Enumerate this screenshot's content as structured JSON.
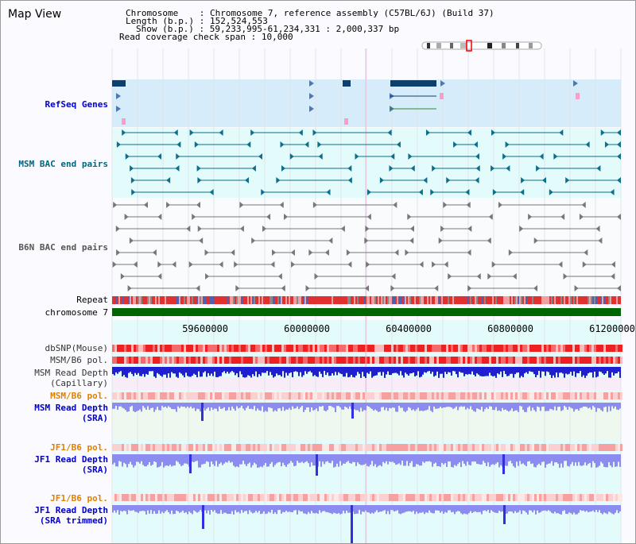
{
  "header": {
    "title": "Map View",
    "info_lines": [
      {
        "label": "Chromosome",
        "value": "Chromosome 7, reference assembly (C57BL/6J) (Build 37)"
      },
      {
        "label": "Length (b.p.)",
        "value": "152,524,553"
      },
      {
        "label": "Show (b.p.)",
        "value": "59,233,995-61,234,331 : 2,000,337 bp"
      },
      {
        "label": "Read coverage check span",
        "value": "10,000"
      }
    ]
  },
  "tracks": {
    "refseq": {
      "label": "RefSeq Genes",
      "color": "#0000cc"
    },
    "msm_bac": {
      "label": "MSM BAC end pairs",
      "color": "#006680"
    },
    "b6n_bac": {
      "label": "B6N BAC end pairs",
      "color": "#555555"
    },
    "repeat": {
      "label": "Repeat",
      "color": "#000000"
    },
    "chromosome": {
      "label": "chromosome 7",
      "color": "#000000"
    },
    "dbsnp": {
      "label": "dbSNP(Mouse)",
      "color": "#333333"
    },
    "msm_b6_pol_1": {
      "label": "MSM/B6 pol.",
      "color": "#333333"
    },
    "msm_read_depth_cap": {
      "label": "MSM Read Depth",
      "label2": "(Capillary)",
      "color": "#333333"
    },
    "msm_b6_pol_2": {
      "label": "MSM/B6 pol.",
      "color": "#e08000"
    },
    "msm_read_depth_sra": {
      "label": "MSM Read Depth",
      "label2": "(SRA)",
      "color": "#0000cc"
    },
    "jf1_b6_pol_1": {
      "label": "JF1/B6 pol.",
      "color": "#e08000"
    },
    "jf1_read_depth_sra": {
      "label": "JF1 Read Depth",
      "label2": "(SRA)",
      "color": "#0000cc"
    },
    "jf1_b6_pol_2": {
      "label": "JF1/B6 pol.",
      "color": "#e08000"
    },
    "jf1_read_depth_trim": {
      "label": "JF1 Read Depth",
      "label2": "(SRA trimmed)",
      "color": "#0000cc"
    }
  },
  "ruler": {
    "ticks": [
      {
        "pos": 59600000,
        "label": "59600000"
      },
      {
        "pos": 60000000,
        "label": "60000000"
      },
      {
        "pos": 60400000,
        "label": "60400000"
      },
      {
        "pos": 60800000,
        "label": "60800000"
      },
      {
        "pos": 61200000,
        "label": "61200000"
      }
    ]
  },
  "view": {
    "start": 59233995,
    "end": 61234331
  },
  "colors": {
    "panel_blue": "#d6ecfa",
    "panel_cyan": "#e3fbfb",
    "panel_white": "#fafbfd",
    "panel_pink": "#f8ecf8",
    "panel_green": "#eef8ee",
    "gene_dark": "#0b3f6e",
    "msm_feature": "#0e6f8c",
    "b6n_feature": "#777777",
    "chromosome_bar": "#006600",
    "depth_blue": "#1f1fd0",
    "depth_light": "#8c8cf0",
    "snp_red": "#ee2020"
  }
}
